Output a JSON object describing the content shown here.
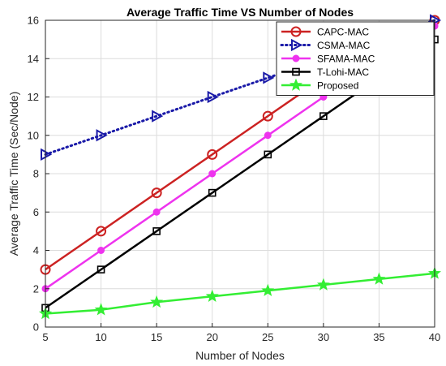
{
  "chart_data": {
    "type": "line",
    "title": "Average Traffic Time VS Number of Nodes",
    "xlabel": "Number of Nodes",
    "ylabel": "Average Traffic Time (Sec/Node)",
    "xlim": [
      5,
      40
    ],
    "ylim": [
      0,
      16
    ],
    "xticks": [
      5,
      10,
      15,
      20,
      25,
      30,
      35,
      40
    ],
    "yticks": [
      0,
      2,
      4,
      6,
      8,
      10,
      12,
      14,
      16
    ],
    "grid": true,
    "legend_position": "top-right",
    "series": [
      {
        "name": "CAPC-MAC",
        "color": "#cc2222",
        "marker": "circle",
        "line_style": "solid",
        "x": [
          5,
          10,
          15,
          20,
          25,
          30,
          35,
          40
        ],
        "y": [
          3,
          5,
          7,
          9,
          11,
          13,
          14.5,
          16
        ]
      },
      {
        "name": "CSMA-MAC",
        "color": "#1a1aa8",
        "marker": "triangle-right",
        "line_style": "dotted",
        "x": [
          5,
          10,
          15,
          20,
          25,
          30,
          35,
          40
        ],
        "y": [
          9,
          10,
          11,
          12,
          13,
          14,
          15,
          16
        ]
      },
      {
        "name": "SFAMA-MAC",
        "color": "#ee33ee",
        "marker": "filled-circle",
        "line_style": "solid",
        "x": [
          5,
          10,
          15,
          20,
          25,
          30,
          35,
          40
        ],
        "y": [
          2,
          4,
          6,
          8,
          10,
          12,
          14,
          15.7
        ]
      },
      {
        "name": "T-Lohi-MAC",
        "color": "#000000",
        "marker": "square",
        "line_style": "solid",
        "x": [
          5,
          10,
          15,
          20,
          25,
          30,
          35,
          40
        ],
        "y": [
          1,
          3,
          5,
          7,
          9,
          11,
          13,
          15
        ]
      },
      {
        "name": "Proposed",
        "color": "#33ee33",
        "marker": "star",
        "line_style": "solid",
        "x": [
          5,
          10,
          15,
          20,
          25,
          30,
          35,
          40
        ],
        "y": [
          0.7,
          0.9,
          1.3,
          1.6,
          1.9,
          2.2,
          2.5,
          2.8
        ]
      }
    ]
  }
}
